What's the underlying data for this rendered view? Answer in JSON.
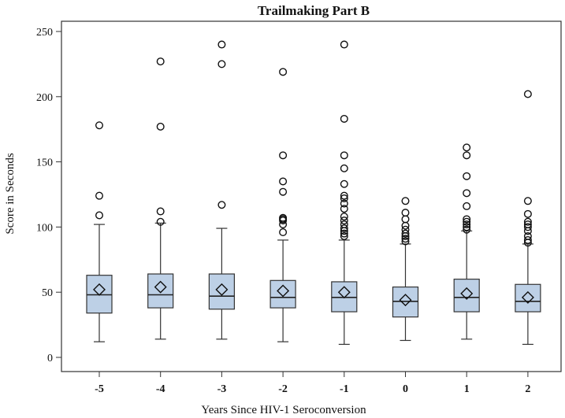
{
  "chart_data": {
    "type": "boxplot",
    "title": "Trailmaking Part B",
    "xlabel": "Years Since HIV-1 Seroconversion",
    "ylabel": "Score in Seconds",
    "ylim": [
      0,
      260
    ],
    "yticks": [
      0,
      50,
      100,
      150,
      200,
      250
    ],
    "categories": [
      "-5",
      "-4",
      "-3",
      "-2",
      "-1",
      "0",
      "1",
      "2"
    ],
    "grid": false,
    "box_fill": "#bdd0e6",
    "line_color": "#333333",
    "boxes": [
      {
        "category": "-5",
        "whisker_low": 12,
        "q1": 34,
        "median": 48,
        "q3": 63,
        "whisker_high": 102,
        "mean": 52,
        "outliers": [
          109,
          124,
          178
        ]
      },
      {
        "category": "-4",
        "whisker_low": 14,
        "q1": 38,
        "median": 48,
        "q3": 64,
        "whisker_high": 103,
        "mean": 54,
        "outliers": [
          104,
          112,
          177,
          227
        ]
      },
      {
        "category": "-3",
        "whisker_low": 14,
        "q1": 37,
        "median": 47,
        "q3": 64,
        "whisker_high": 99,
        "mean": 52,
        "outliers": [
          117,
          225,
          240
        ]
      },
      {
        "category": "-2",
        "whisker_low": 12,
        "q1": 38,
        "median": 46,
        "q3": 59,
        "whisker_high": 90,
        "mean": 51,
        "outliers": [
          96,
          102,
          105,
          106,
          107,
          127,
          135,
          155,
          219
        ]
      },
      {
        "category": "-1",
        "whisker_low": 10,
        "q1": 35,
        "median": 46,
        "q3": 58,
        "whisker_high": 90,
        "mean": 50,
        "outliers": [
          93,
          95,
          97,
          99,
          102,
          105,
          108,
          114,
          118,
          122,
          124,
          133,
          145,
          155,
          183,
          240
        ]
      },
      {
        "category": "0",
        "whisker_low": 13,
        "q1": 31,
        "median": 43,
        "q3": 54,
        "whisker_high": 87,
        "mean": 44,
        "outliers": [
          89,
          91,
          93,
          95,
          98,
          101,
          106,
          111,
          120
        ]
      },
      {
        "category": "1",
        "whisker_low": 14,
        "q1": 35,
        "median": 46,
        "q3": 60,
        "whisker_high": 97,
        "mean": 49,
        "outliers": [
          98,
          100,
          102,
          104,
          106,
          116,
          126,
          139,
          155,
          161
        ]
      },
      {
        "category": "2",
        "whisker_low": 10,
        "q1": 35,
        "median": 43,
        "q3": 56,
        "whisker_high": 87,
        "mean": 46,
        "outliers": [
          88,
          90,
          93,
          97,
          100,
          102,
          104,
          110,
          120,
          202
        ]
      }
    ]
  }
}
